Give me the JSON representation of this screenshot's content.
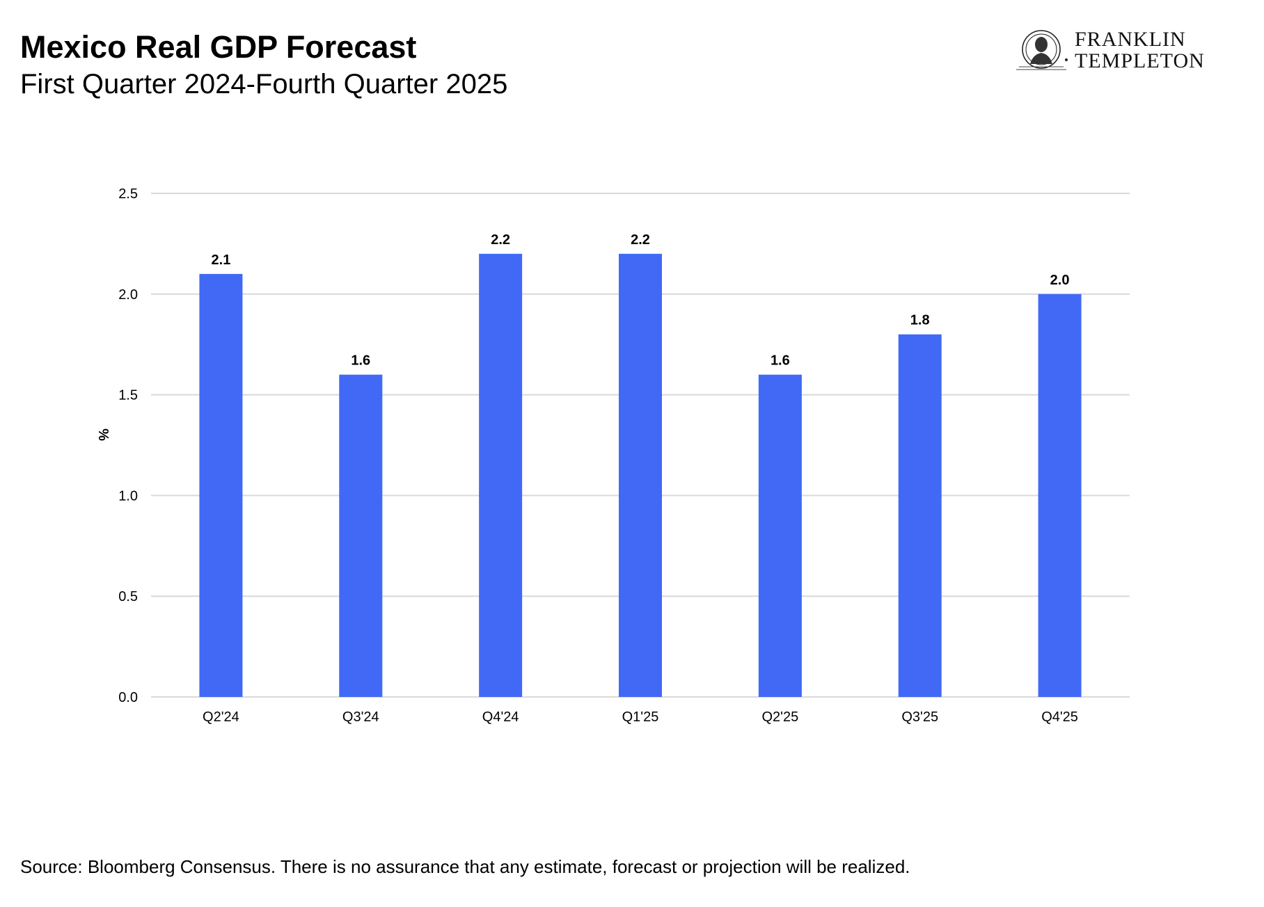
{
  "header": {
    "title": "Mexico Real GDP Forecast",
    "subtitle": "First Quarter 2024-Fourth Quarter 2025"
  },
  "logo": {
    "line1": "FRANKLIN",
    "line2": "TEMPLETON",
    "icon": "franklin-portrait-medallion-icon"
  },
  "footer": {
    "source": "Source: Bloomberg Consensus. There is no assurance that any estimate, forecast or projection will be realized."
  },
  "colors": {
    "bar": "#4169F5",
    "grid": "#D9D9D9",
    "text": "#000000"
  },
  "chart_data": {
    "type": "bar",
    "categories": [
      "Q2'24",
      "Q3'24",
      "Q4'24",
      "Q1'25",
      "Q2'25",
      "Q3'25",
      "Q4'25"
    ],
    "values": [
      2.1,
      1.6,
      2.2,
      2.2,
      1.6,
      1.8,
      2.0
    ],
    "value_labels": [
      "2.1",
      "1.6",
      "2.2",
      "2.2",
      "1.6",
      "1.8",
      "2.0"
    ],
    "ylabel": "%",
    "ylim": [
      0,
      2.5
    ],
    "yticks": [
      0,
      0.5,
      1.0,
      1.5,
      2.0,
      2.5
    ],
    "ytick_labels": [
      "0.0",
      "0.5",
      "1.0",
      "1.5",
      "2.0",
      "2.5"
    ],
    "grid": true,
    "legend": "none"
  }
}
